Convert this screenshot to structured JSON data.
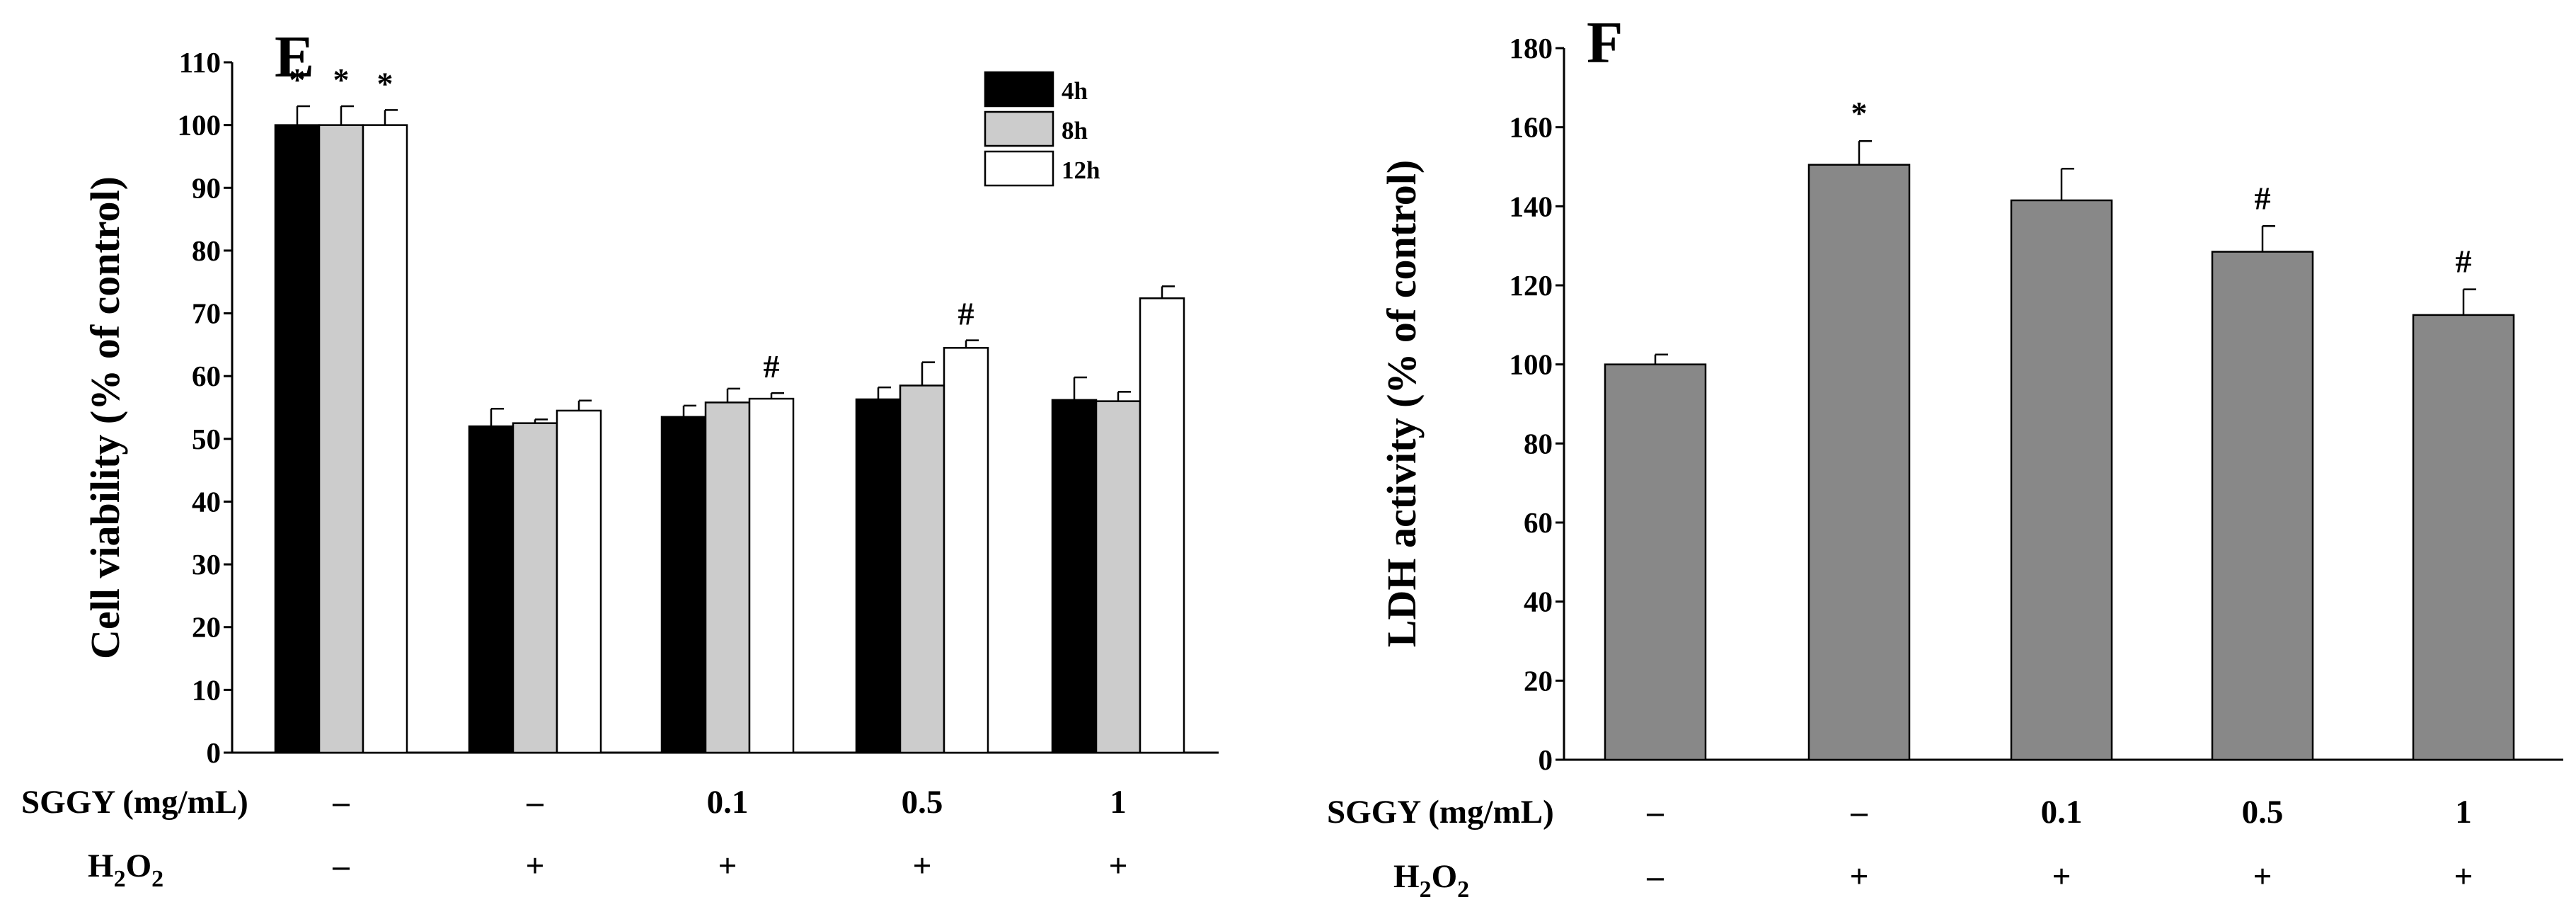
{
  "chart_data": [
    {
      "panel": "E",
      "type": "bar",
      "ylabel": "Cell  viability (% of control)",
      "ylim": [
        0,
        110
      ],
      "ytick_step": 10,
      "series": [
        {
          "name": "4h",
          "color": "#000000",
          "values": [
            100,
            52,
            53.5,
            56.3,
            56.2
          ],
          "errors": [
            3.0,
            2.8,
            1.8,
            1.9,
            3.6
          ]
        },
        {
          "name": "8h",
          "color": "#cccccc",
          "values": [
            100,
            52.5,
            55.8,
            58.5,
            56
          ],
          "errors": [
            3.0,
            0.6,
            2.2,
            3.7,
            1.5
          ]
        },
        {
          "name": "12h",
          "color": "#ffffff",
          "values": [
            100,
            54.5,
            56.4,
            64.5,
            72.4
          ],
          "errors": [
            2.4,
            1.6,
            0.9,
            1.2,
            1.9
          ]
        }
      ],
      "annotations": [
        [
          "*",
          "*",
          "*"
        ],
        [
          "",
          "",
          ""
        ],
        [
          "",
          "",
          "#"
        ],
        [
          "",
          "",
          "#"
        ],
        [
          "",
          "",
          ""
        ]
      ],
      "row_labels": {
        "sggy": "SGGY (mg/mL)",
        "h2o2_main": "H",
        "h2o2_sub1": "2",
        "h2o2_mid": "O",
        "h2o2_sub2": "2"
      },
      "sggy_values": [
        "–",
        "–",
        "0.1",
        "0.5",
        "1"
      ],
      "h2o2_values": [
        "–",
        "+",
        "+",
        "+",
        "+"
      ]
    },
    {
      "panel": "F",
      "type": "bar",
      "ylabel": "LDH activity (% of control)",
      "ylim": [
        0,
        180
      ],
      "ytick_step": 20,
      "color": "#888888",
      "values": [
        100,
        150.5,
        141.5,
        128.5,
        112.5
      ],
      "errors": [
        2.5,
        6.0,
        8.0,
        6.5,
        6.5
      ],
      "annotations": [
        "",
        "*",
        "",
        "#",
        "#"
      ],
      "row_labels": {
        "sggy": "SGGY (mg/mL)",
        "h2o2_main": "H",
        "h2o2_sub1": "2",
        "h2o2_mid": "O",
        "h2o2_sub2": "2"
      },
      "sggy_values": [
        "–",
        "–",
        "0.1",
        "0.5",
        "1"
      ],
      "h2o2_values": [
        "–",
        "+",
        "+",
        "+",
        "+"
      ]
    }
  ]
}
